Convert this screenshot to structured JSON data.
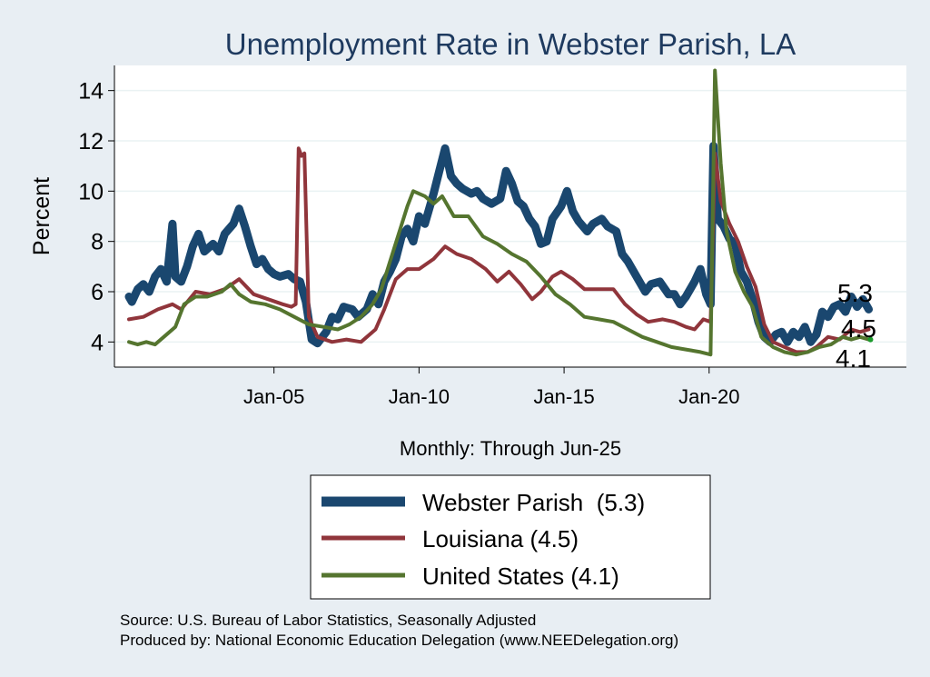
{
  "chart_data": {
    "type": "line",
    "title": "Unemployment Rate in Webster Parish, LA",
    "ylabel": "Percent",
    "xlabel": "Monthly: Through Jun-25",
    "ylim": [
      3.0,
      15.0
    ],
    "xlim": [
      1999.5,
      2026.8
    ],
    "y_ticks": [
      4,
      6,
      8,
      10,
      12,
      14
    ],
    "x_ticks": [
      {
        "label": "Jan-05",
        "value": 2005.0
      },
      {
        "label": "Jan-10",
        "value": 2010.0
      },
      {
        "label": "Jan-15",
        "value": 2015.0
      },
      {
        "label": "Jan-20",
        "value": 2020.0
      }
    ],
    "grid": true,
    "legend_position": "bottom",
    "end_labels": [
      "5.3",
      "4.5",
      "4.1"
    ],
    "series": [
      {
        "name": "Webster Parish",
        "legend": "Webster Parish  (5.3)",
        "color": "#1a476f",
        "emphasis": "thick",
        "points": [
          [
            2000.0,
            5.8
          ],
          [
            2000.1,
            5.6
          ],
          [
            2000.3,
            6.1
          ],
          [
            2000.5,
            6.3
          ],
          [
            2000.7,
            6.0
          ],
          [
            2000.9,
            6.6
          ],
          [
            2001.1,
            6.9
          ],
          [
            2001.3,
            6.4
          ],
          [
            2001.5,
            8.7
          ],
          [
            2001.6,
            6.6
          ],
          [
            2001.8,
            6.4
          ],
          [
            2002.0,
            7.0
          ],
          [
            2002.2,
            7.8
          ],
          [
            2002.4,
            8.3
          ],
          [
            2002.6,
            7.6
          ],
          [
            2002.9,
            7.9
          ],
          [
            2003.1,
            7.6
          ],
          [
            2003.3,
            8.3
          ],
          [
            2003.6,
            8.7
          ],
          [
            2003.8,
            9.3
          ],
          [
            2004.0,
            8.6
          ],
          [
            2004.2,
            7.8
          ],
          [
            2004.4,
            7.1
          ],
          [
            2004.6,
            7.3
          ],
          [
            2004.8,
            6.9
          ],
          [
            2005.0,
            6.7
          ],
          [
            2005.2,
            6.6
          ],
          [
            2005.5,
            6.7
          ],
          [
            2005.7,
            6.5
          ],
          [
            2005.9,
            6.4
          ],
          [
            2006.1,
            5.6
          ],
          [
            2006.3,
            4.1
          ],
          [
            2006.5,
            3.95
          ],
          [
            2006.8,
            4.4
          ],
          [
            2007.0,
            5.0
          ],
          [
            2007.2,
            4.9
          ],
          [
            2007.4,
            5.4
          ],
          [
            2007.7,
            5.3
          ],
          [
            2007.9,
            5.0
          ],
          [
            2008.2,
            5.3
          ],
          [
            2008.4,
            5.9
          ],
          [
            2008.6,
            5.5
          ],
          [
            2008.8,
            6.4
          ],
          [
            2009.0,
            6.8
          ],
          [
            2009.2,
            7.3
          ],
          [
            2009.4,
            8.2
          ],
          [
            2009.6,
            8.5
          ],
          [
            2009.8,
            8.0
          ],
          [
            2010.0,
            9.0
          ],
          [
            2010.2,
            8.7
          ],
          [
            2010.5,
            9.9
          ],
          [
            2010.7,
            10.8
          ],
          [
            2010.9,
            11.7
          ],
          [
            2011.1,
            10.6
          ],
          [
            2011.3,
            10.3
          ],
          [
            2011.5,
            10.1
          ],
          [
            2011.8,
            9.9
          ],
          [
            2012.0,
            10.0
          ],
          [
            2012.2,
            9.7
          ],
          [
            2012.5,
            9.5
          ],
          [
            2012.8,
            9.7
          ],
          [
            2013.0,
            10.8
          ],
          [
            2013.2,
            10.3
          ],
          [
            2013.4,
            9.6
          ],
          [
            2013.6,
            9.4
          ],
          [
            2013.8,
            8.9
          ],
          [
            2014.0,
            8.6
          ],
          [
            2014.2,
            7.9
          ],
          [
            2014.4,
            8.0
          ],
          [
            2014.6,
            8.9
          ],
          [
            2014.9,
            9.4
          ],
          [
            2015.1,
            10.0
          ],
          [
            2015.3,
            9.2
          ],
          [
            2015.5,
            8.8
          ],
          [
            2015.8,
            8.4
          ],
          [
            2016.0,
            8.7
          ],
          [
            2016.3,
            8.9
          ],
          [
            2016.5,
            8.6
          ],
          [
            2016.8,
            8.4
          ],
          [
            2017.0,
            7.5
          ],
          [
            2017.2,
            7.2
          ],
          [
            2017.5,
            6.6
          ],
          [
            2017.8,
            6.0
          ],
          [
            2018.0,
            6.3
          ],
          [
            2018.3,
            6.4
          ],
          [
            2018.6,
            5.9
          ],
          [
            2018.8,
            5.9
          ],
          [
            2019.0,
            5.5
          ],
          [
            2019.2,
            5.8
          ],
          [
            2019.5,
            6.4
          ],
          [
            2019.7,
            6.9
          ],
          [
            2019.9,
            5.9
          ],
          [
            2020.05,
            5.5
          ],
          [
            2020.15,
            11.8
          ],
          [
            2020.3,
            8.9
          ],
          [
            2020.5,
            8.6
          ],
          [
            2020.7,
            8.1
          ],
          [
            2020.9,
            7.9
          ],
          [
            2021.1,
            6.8
          ],
          [
            2021.3,
            6.4
          ],
          [
            2021.5,
            5.7
          ],
          [
            2021.7,
            4.8
          ],
          [
            2021.9,
            4.2
          ],
          [
            2022.1,
            4.0
          ],
          [
            2022.3,
            4.3
          ],
          [
            2022.5,
            4.4
          ],
          [
            2022.7,
            4.0
          ],
          [
            2022.9,
            4.4
          ],
          [
            2023.1,
            4.2
          ],
          [
            2023.3,
            4.6
          ],
          [
            2023.5,
            4.0
          ],
          [
            2023.7,
            4.3
          ],
          [
            2023.9,
            5.2
          ],
          [
            2024.1,
            5.0
          ],
          [
            2024.3,
            5.4
          ],
          [
            2024.5,
            5.5
          ],
          [
            2024.7,
            5.2
          ],
          [
            2024.9,
            5.8
          ],
          [
            2025.1,
            5.4
          ],
          [
            2025.3,
            5.7
          ],
          [
            2025.5,
            5.3
          ]
        ]
      },
      {
        "name": "Louisiana",
        "legend": "Louisiana (4.5)",
        "color": "#90353b",
        "emphasis": "normal",
        "points": [
          [
            2000.0,
            4.9
          ],
          [
            2000.5,
            5.0
          ],
          [
            2001.0,
            5.3
          ],
          [
            2001.5,
            5.5
          ],
          [
            2001.8,
            5.3
          ],
          [
            2002.3,
            6.0
          ],
          [
            2002.8,
            5.9
          ],
          [
            2003.3,
            6.1
          ],
          [
            2003.8,
            6.5
          ],
          [
            2004.3,
            5.9
          ],
          [
            2004.8,
            5.7
          ],
          [
            2005.3,
            5.5
          ],
          [
            2005.6,
            5.4
          ],
          [
            2005.75,
            5.5
          ],
          [
            2005.85,
            11.7
          ],
          [
            2005.95,
            11.4
          ],
          [
            2006.05,
            11.5
          ],
          [
            2006.2,
            5.0
          ],
          [
            2006.5,
            4.2
          ],
          [
            2007.0,
            4.0
          ],
          [
            2007.5,
            4.1
          ],
          [
            2008.0,
            4.0
          ],
          [
            2008.5,
            4.5
          ],
          [
            2008.8,
            5.3
          ],
          [
            2009.2,
            6.5
          ],
          [
            2009.6,
            6.9
          ],
          [
            2010.0,
            6.9
          ],
          [
            2010.5,
            7.3
          ],
          [
            2010.9,
            7.8
          ],
          [
            2011.3,
            7.5
          ],
          [
            2011.8,
            7.3
          ],
          [
            2012.3,
            6.9
          ],
          [
            2012.7,
            6.4
          ],
          [
            2013.1,
            6.8
          ],
          [
            2013.5,
            6.3
          ],
          [
            2013.9,
            5.7
          ],
          [
            2014.2,
            6.0
          ],
          [
            2014.6,
            6.6
          ],
          [
            2014.9,
            6.8
          ],
          [
            2015.3,
            6.5
          ],
          [
            2015.7,
            6.1
          ],
          [
            2016.2,
            6.1
          ],
          [
            2016.7,
            6.1
          ],
          [
            2017.1,
            5.5
          ],
          [
            2017.5,
            5.1
          ],
          [
            2017.9,
            4.8
          ],
          [
            2018.4,
            4.9
          ],
          [
            2018.8,
            4.8
          ],
          [
            2019.2,
            4.6
          ],
          [
            2019.5,
            4.5
          ],
          [
            2019.8,
            4.9
          ],
          [
            2020.05,
            4.8
          ],
          [
            2020.2,
            11.5
          ],
          [
            2020.4,
            9.6
          ],
          [
            2020.7,
            8.7
          ],
          [
            2021.0,
            8.0
          ],
          [
            2021.3,
            7.0
          ],
          [
            2021.6,
            6.2
          ],
          [
            2021.9,
            4.7
          ],
          [
            2022.2,
            4.0
          ],
          [
            2022.6,
            3.8
          ],
          [
            2023.0,
            3.6
          ],
          [
            2023.4,
            3.6
          ],
          [
            2023.7,
            3.8
          ],
          [
            2024.1,
            4.2
          ],
          [
            2024.5,
            4.1
          ],
          [
            2024.9,
            4.5
          ],
          [
            2025.2,
            4.4
          ],
          [
            2025.5,
            4.5
          ]
        ]
      },
      {
        "name": "United States",
        "legend": "United States (4.1)",
        "color": "#55752f",
        "emphasis": "normal",
        "points": [
          [
            2000.0,
            4.0
          ],
          [
            2000.3,
            3.9
          ],
          [
            2000.6,
            4.0
          ],
          [
            2000.9,
            3.9
          ],
          [
            2001.2,
            4.2
          ],
          [
            2001.6,
            4.6
          ],
          [
            2001.9,
            5.5
          ],
          [
            2002.3,
            5.8
          ],
          [
            2002.7,
            5.8
          ],
          [
            2003.2,
            6.0
          ],
          [
            2003.5,
            6.3
          ],
          [
            2003.8,
            5.9
          ],
          [
            2004.2,
            5.6
          ],
          [
            2004.7,
            5.5
          ],
          [
            2005.2,
            5.3
          ],
          [
            2005.7,
            5.0
          ],
          [
            2006.2,
            4.7
          ],
          [
            2006.7,
            4.6
          ],
          [
            2007.2,
            4.5
          ],
          [
            2007.6,
            4.7
          ],
          [
            2008.0,
            5.0
          ],
          [
            2008.4,
            5.5
          ],
          [
            2008.7,
            6.1
          ],
          [
            2009.0,
            7.2
          ],
          [
            2009.3,
            8.3
          ],
          [
            2009.6,
            9.4
          ],
          [
            2009.8,
            10.0
          ],
          [
            2010.2,
            9.8
          ],
          [
            2010.5,
            9.5
          ],
          [
            2010.8,
            9.8
          ],
          [
            2011.2,
            9.0
          ],
          [
            2011.7,
            9.0
          ],
          [
            2012.2,
            8.2
          ],
          [
            2012.7,
            7.9
          ],
          [
            2013.2,
            7.5
          ],
          [
            2013.7,
            7.2
          ],
          [
            2014.2,
            6.6
          ],
          [
            2014.7,
            5.9
          ],
          [
            2015.2,
            5.5
          ],
          [
            2015.7,
            5.0
          ],
          [
            2016.2,
            4.9
          ],
          [
            2016.7,
            4.8
          ],
          [
            2017.2,
            4.5
          ],
          [
            2017.7,
            4.2
          ],
          [
            2018.2,
            4.0
          ],
          [
            2018.7,
            3.8
          ],
          [
            2019.2,
            3.7
          ],
          [
            2019.7,
            3.6
          ],
          [
            2020.05,
            3.5
          ],
          [
            2020.2,
            14.8
          ],
          [
            2020.4,
            11.1
          ],
          [
            2020.6,
            8.4
          ],
          [
            2020.9,
            6.8
          ],
          [
            2021.2,
            6.0
          ],
          [
            2021.5,
            5.4
          ],
          [
            2021.8,
            4.2
          ],
          [
            2022.2,
            3.8
          ],
          [
            2022.6,
            3.6
          ],
          [
            2023.0,
            3.5
          ],
          [
            2023.4,
            3.6
          ],
          [
            2023.8,
            3.8
          ],
          [
            2024.2,
            3.9
          ],
          [
            2024.6,
            4.2
          ],
          [
            2024.9,
            4.1
          ],
          [
            2025.2,
            4.2
          ],
          [
            2025.5,
            4.1
          ]
        ]
      }
    ]
  },
  "source_text": "Source: U.S. Bureau of Labor Statistics, Seasonally Adjusted",
  "produced_text": "Produced by: National Economic Education Delegation (www.NEEDelegation.org)"
}
